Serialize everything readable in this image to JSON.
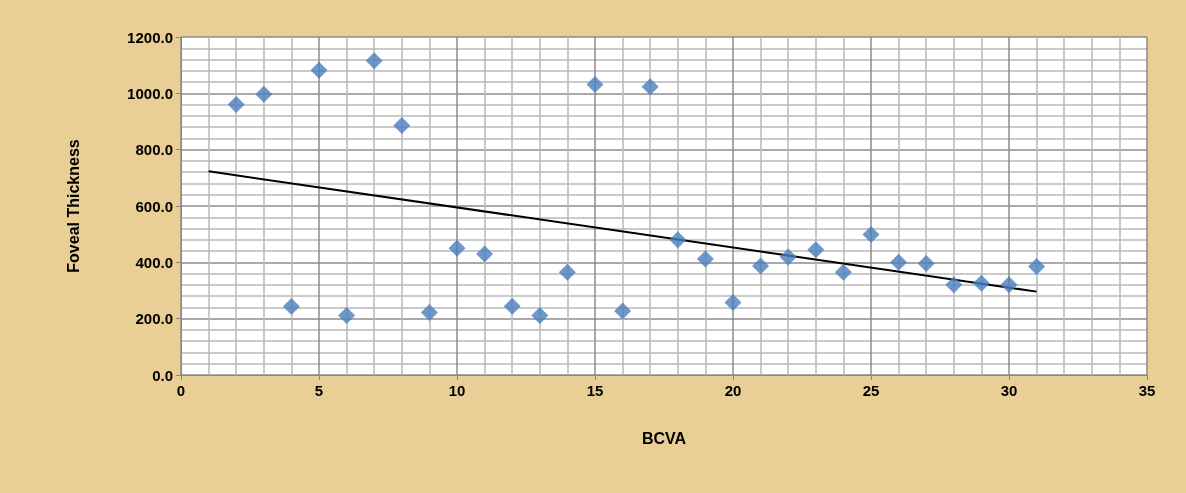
{
  "chart_data": {
    "type": "scatter",
    "xlabel": "BCVA",
    "ylabel": "Foveal Thickness",
    "x": [
      2,
      3,
      4,
      5,
      6,
      7,
      8,
      9,
      10,
      11,
      12,
      13,
      14,
      15,
      16,
      17,
      18,
      19,
      20,
      21,
      22,
      23,
      24,
      25,
      26,
      27,
      28,
      29,
      30,
      31
    ],
    "series": [
      {
        "type": "scatter",
        "color": "#4a7ebb",
        "marker": "diamond",
        "values": [
          960,
          997,
          243,
          1082,
          211,
          1116,
          886,
          222,
          450,
          430,
          244,
          211,
          365,
          1031,
          227,
          1023,
          480,
          412,
          257,
          387,
          419,
          445,
          365,
          499,
          400,
          396,
          320,
          326,
          320,
          385
        ]
      },
      {
        "type": "line",
        "color": "#000000",
        "marker": "none",
        "x": [
          1,
          31
        ],
        "values": [
          723,
          296
        ]
      }
    ],
    "xlim": [
      0,
      35
    ],
    "xticks": [
      0,
      5,
      10,
      15,
      20,
      25,
      30,
      35
    ],
    "ylim": [
      0,
      1200
    ],
    "yticks": [
      {
        "value": 0,
        "label": "0.0"
      },
      {
        "value": 200,
        "label": "200.0"
      },
      {
        "value": 400,
        "label": "400.0"
      },
      {
        "value": 600,
        "label": "600.0"
      },
      {
        "value": 800,
        "label": "800.0"
      },
      {
        "value": 1000,
        "label": "1000.0"
      },
      {
        "value": 1200,
        "label": "1200.0"
      }
    ],
    "grid": true
  }
}
